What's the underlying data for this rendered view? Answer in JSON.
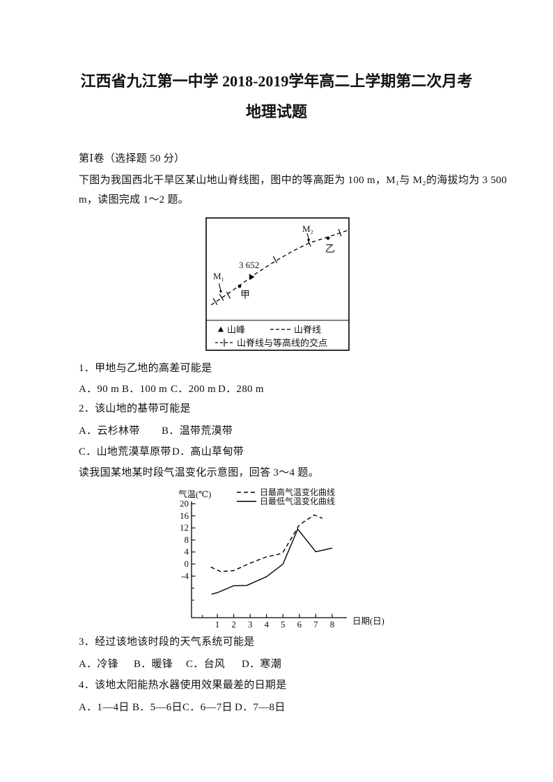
{
  "title": {
    "line1": "江西省九江第一中学 2018-2019学年高二上学期第二次月考",
    "line2": "地理试题"
  },
  "section_header": "第Ⅰ卷（选择题 50 分）",
  "intro1": {
    "line1": "下图为我国西北干旱区某山地山脊线图，图中的等高距为 100 m，M₁与 M₂的海拔均为 3 500",
    "line2": "m，读图完成 1～2 题。"
  },
  "figure1": {
    "labels": {
      "m1": "M₁",
      "m2": "M₂",
      "jia": "甲",
      "yi": "乙",
      "elevation": "3 652"
    },
    "legend": {
      "peak": "山峰",
      "ridge": "山脊线",
      "intersection": "山脊线与等高线的交点"
    }
  },
  "questions": {
    "q1": {
      "text": "1．甲地与乙地的高差可能是",
      "options": [
        "A．90 m",
        "B．100 m",
        "C．200 m",
        "D．280 m"
      ]
    },
    "q2": {
      "text": "2．该山地的基带可能是",
      "options": [
        "A．云杉林带",
        "B．温带荒漠带",
        "C．山地荒漠草原带",
        "D．高山草甸带"
      ]
    },
    "intro2": "读我国某地某时段气温变化示意图，回答 3～4 题。",
    "q3": {
      "text": "3．经过该地该时段的天气系统可能是",
      "options": [
        "A．冷锋",
        "B．暖锋",
        "C．台风",
        "D．寒潮"
      ]
    },
    "q4": {
      "text": "4．该地太阳能热水器使用效果最差的日期是",
      "options": [
        "A．1—4日",
        "B．5—6日",
        "C．6—7日",
        "D．7—8日"
      ]
    }
  },
  "chart_data": {
    "type": "line",
    "title": "",
    "ylabel": "气温(℃)",
    "xlabel": "日期(日)",
    "y_ticks": [
      20,
      16,
      12,
      8,
      4,
      0,
      -4
    ],
    "y_minor_ticks": [
      -8,
      -12
    ],
    "x_ticks": [
      1,
      2,
      3,
      4,
      5,
      6,
      7,
      8
    ],
    "x_minor_ticks": [
      0.1
    ],
    "ylim": [
      -16,
      21
    ],
    "xlim": [
      0,
      8.6
    ],
    "grid": false,
    "legend_position": "top",
    "line_color": "#000000",
    "series": [
      {
        "name": "日最高气温变化曲线",
        "style": "dashed",
        "points": [
          [
            0.6,
            -1
          ],
          [
            1.2,
            -2.5
          ],
          [
            2,
            -2.2
          ],
          [
            3,
            0.3
          ],
          [
            4,
            2.4
          ],
          [
            4.7,
            3.2
          ],
          [
            5,
            3.9
          ],
          [
            6,
            13
          ],
          [
            6.9,
            16.3
          ],
          [
            7.4,
            15.2
          ]
        ]
      },
      {
        "name": "日最低气温变化曲线",
        "style": "solid",
        "points": [
          [
            0.65,
            -10
          ],
          [
            1,
            -9.5
          ],
          [
            2,
            -7.2
          ],
          [
            2.8,
            -7.1
          ],
          [
            4,
            -4.2
          ],
          [
            5,
            0
          ],
          [
            5.9,
            11.6
          ],
          [
            7,
            4.1
          ],
          [
            8,
            5.3
          ]
        ]
      }
    ]
  }
}
